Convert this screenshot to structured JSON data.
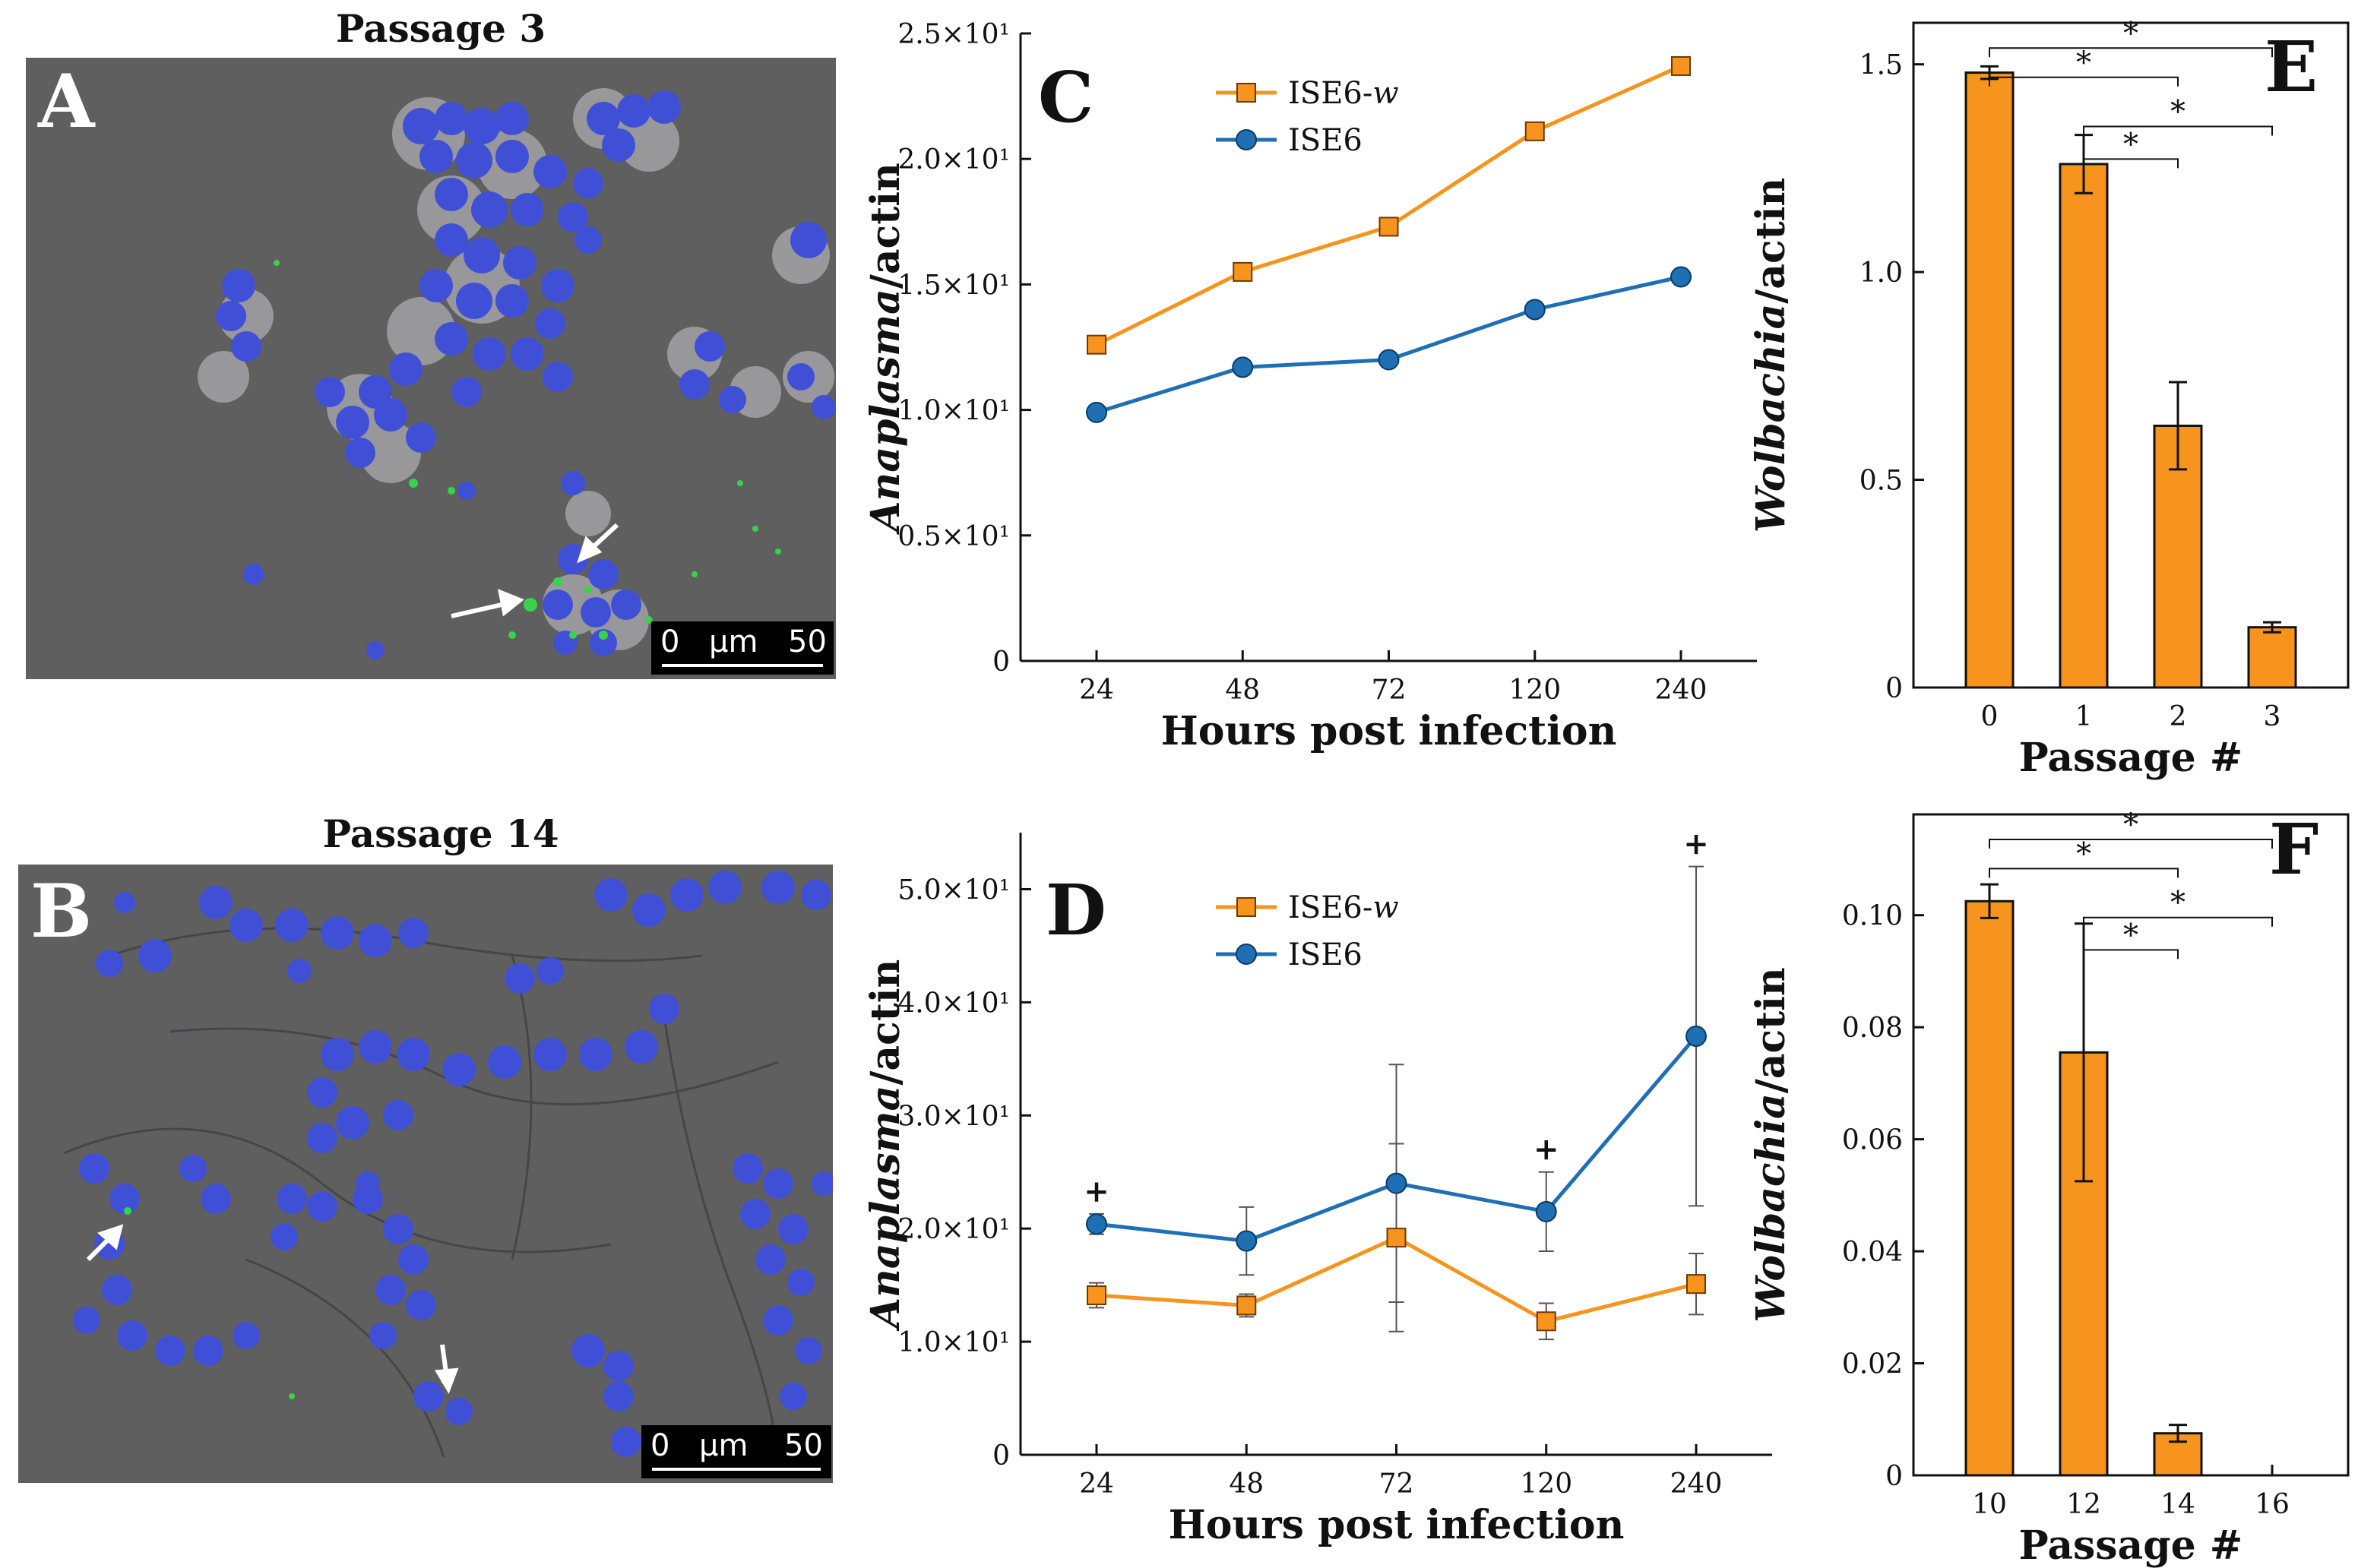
{
  "colors": {
    "orange": "#f7941d",
    "blue": "#1f6fb4",
    "micrograph_bg": "#5f5f60",
    "nuclei": "#4050d6",
    "signal": "#39d24a"
  },
  "panel_a": {
    "title": "Passage 3",
    "letter": "A",
    "scale": {
      "start": "0",
      "unit": "μm",
      "end": "50"
    }
  },
  "panel_b": {
    "title": "Passage 14",
    "letter": "B",
    "scale": {
      "start": "0",
      "unit": "μm",
      "end": "50"
    }
  },
  "chart_data": [
    {
      "panel": "C",
      "type": "line",
      "categories": [
        "24",
        "48",
        "72",
        "120",
        "240"
      ],
      "ylim": [
        0,
        25
      ],
      "yticks": [
        0,
        5,
        10,
        15,
        20,
        25
      ],
      "ytick_labels": [
        "0",
        "0.5×10¹",
        "1.0×10¹",
        "1.5×10¹",
        "2.0×10¹",
        "2.5×10¹"
      ],
      "ylabel_italic": "Anaplasma",
      "ylabel_rest": "/actin",
      "xlabel": "Hours post infection",
      "series": [
        {
          "name": "ISE6-",
          "name_italic": "w",
          "marker": "square",
          "color": "#f7941d",
          "values": [
            12.6,
            15.5,
            17.3,
            21.1,
            23.7
          ]
        },
        {
          "name": "ISE6",
          "name_italic": "",
          "marker": "circle",
          "color": "#1f6fb4",
          "values": [
            9.9,
            11.7,
            12.0,
            14.0,
            15.3
          ]
        }
      ]
    },
    {
      "panel": "D",
      "type": "line",
      "categories": [
        "24",
        "48",
        "72",
        "120",
        "240"
      ],
      "ylim": [
        0,
        55
      ],
      "yticks": [
        0,
        10,
        20,
        30,
        40,
        50
      ],
      "ytick_labels": [
        "0",
        "1.0×10¹",
        "2.0×10¹",
        "3.0×10¹",
        "4.0×10¹",
        "5.0×10¹"
      ],
      "ylabel_italic": "Anaplasma",
      "ylabel_rest": "/actin",
      "xlabel": "Hours post infection",
      "markers_text": [
        "+",
        "",
        "",
        "+",
        "+"
      ],
      "series": [
        {
          "name": "ISE6-",
          "name_italic": "w",
          "marker": "square",
          "color": "#f7941d",
          "values": [
            14.1,
            13.2,
            19.2,
            11.8,
            15.1
          ],
          "errors": [
            1.1,
            1.0,
            8.3,
            1.6,
            2.7
          ]
        },
        {
          "name": "ISE6",
          "name_italic": "",
          "marker": "circle",
          "color": "#1f6fb4",
          "values": [
            20.4,
            18.9,
            24.0,
            21.5,
            37.0
          ],
          "errors": [
            0.9,
            3.0,
            10.5,
            3.5,
            15.0
          ]
        }
      ]
    },
    {
      "panel": "E",
      "type": "bar",
      "categories": [
        "0",
        "1",
        "2",
        "3"
      ],
      "values": [
        1.48,
        1.26,
        0.63,
        0.145
      ],
      "errors": [
        0.015,
        0.07,
        0.105,
        0.012
      ],
      "ylim": [
        0,
        1.6
      ],
      "yticks": [
        0,
        0.5,
        1.0,
        1.5
      ],
      "ytick_labels": [
        "0",
        "0.5",
        "1.0",
        "1.5"
      ],
      "ylabel_italic": "Wolbachia",
      "ylabel_rest": "/actin",
      "xlabel": "Passage #",
      "color": "#f7941d",
      "significance": [
        {
          "from": 0,
          "to": 3,
          "label": "*"
        },
        {
          "from": 0,
          "to": 2,
          "label": "*"
        },
        {
          "from": 1,
          "to": 3,
          "label": "*"
        },
        {
          "from": 1,
          "to": 2,
          "label": "*"
        }
      ]
    },
    {
      "panel": "F",
      "type": "bar",
      "categories": [
        "10",
        "12",
        "14",
        "16"
      ],
      "values": [
        0.1025,
        0.0755,
        0.0075,
        0
      ],
      "errors": [
        0.003,
        0.023,
        0.0015,
        0
      ],
      "ylim": [
        0,
        0.118
      ],
      "yticks": [
        0,
        0.02,
        0.04,
        0.06,
        0.08,
        0.1
      ],
      "ytick_labels": [
        "0",
        "0.02",
        "0.04",
        "0.06",
        "0.08",
        "0.10"
      ],
      "ylabel_italic": "Wolbachia",
      "ylabel_rest": "/actin",
      "xlabel": "Passage #",
      "color": "#f7941d",
      "significance": [
        {
          "from": 0,
          "to": 3,
          "label": "*"
        },
        {
          "from": 0,
          "to": 2,
          "label": "*"
        },
        {
          "from": 1,
          "to": 3,
          "label": "*"
        },
        {
          "from": 1,
          "to": 2,
          "label": "*"
        }
      ]
    }
  ]
}
